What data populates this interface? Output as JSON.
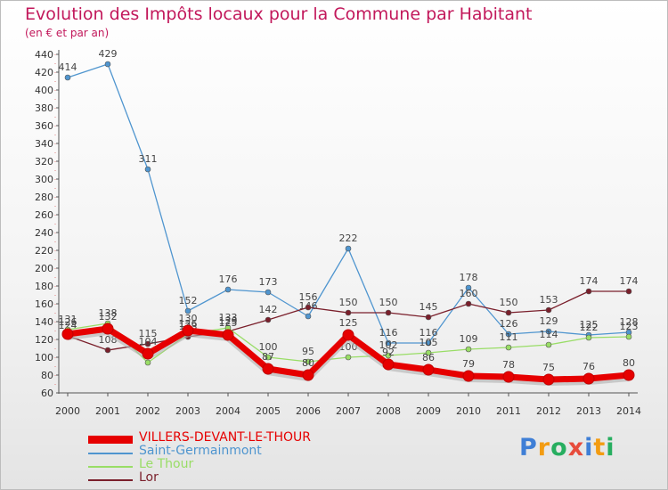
{
  "chart_data": {
    "type": "line",
    "title": "Evolution des Impôts locaux pour la Commune par Habitant",
    "subtitle": "(en € et par an)",
    "xlabel": "",
    "ylabel": "",
    "categories": [
      "2000",
      "2001",
      "2002",
      "2003",
      "2004",
      "2005",
      "2006",
      "2007",
      "2008",
      "2009",
      "2010",
      "2011",
      "2012",
      "2013",
      "2014"
    ],
    "ylim": [
      60,
      440
    ],
    "yticks": [
      60,
      80,
      100,
      120,
      140,
      160,
      180,
      200,
      220,
      240,
      260,
      280,
      300,
      320,
      340,
      360,
      380,
      400,
      420,
      440
    ],
    "grid": false,
    "legend_position": "bottom-left",
    "series": [
      {
        "name": "VILLERS-DEVANT-LE-THOUR",
        "color": "#e60000",
        "values": [
          126,
          132,
          104,
          130,
          125,
          87,
          80,
          125,
          92,
          86,
          79,
          78,
          75,
          76,
          80
        ]
      },
      {
        "name": "Saint-Germainmont",
        "color": "#4f95cf",
        "values": [
          414,
          429,
          311,
          152,
          176,
          173,
          146,
          222,
          116,
          116,
          178,
          126,
          129,
          125,
          128
        ]
      },
      {
        "name": "Le Thour",
        "color": "#99dd66",
        "values": [
          131,
          138,
          94,
          126,
          133,
          100,
          95,
          100,
          102,
          105,
          109,
          111,
          114,
          122,
          123
        ]
      },
      {
        "name": "Lor",
        "color": "#7a1f2b",
        "values": [
          124,
          108,
          115,
          123,
          129,
          142,
          156,
          150,
          150,
          145,
          160,
          150,
          153,
          174,
          174
        ]
      }
    ]
  },
  "brand": {
    "letters": [
      {
        "ch": "P",
        "color": "#3f7fd6"
      },
      {
        "ch": "r",
        "color": "#f39c12"
      },
      {
        "ch": "o",
        "color": "#27ae60"
      },
      {
        "ch": "x",
        "color": "#e74c3c"
      },
      {
        "ch": "i",
        "color": "#3f7fd6"
      },
      {
        "ch": "t",
        "color": "#f39c12"
      },
      {
        "ch": "i",
        "color": "#27ae60"
      }
    ]
  }
}
